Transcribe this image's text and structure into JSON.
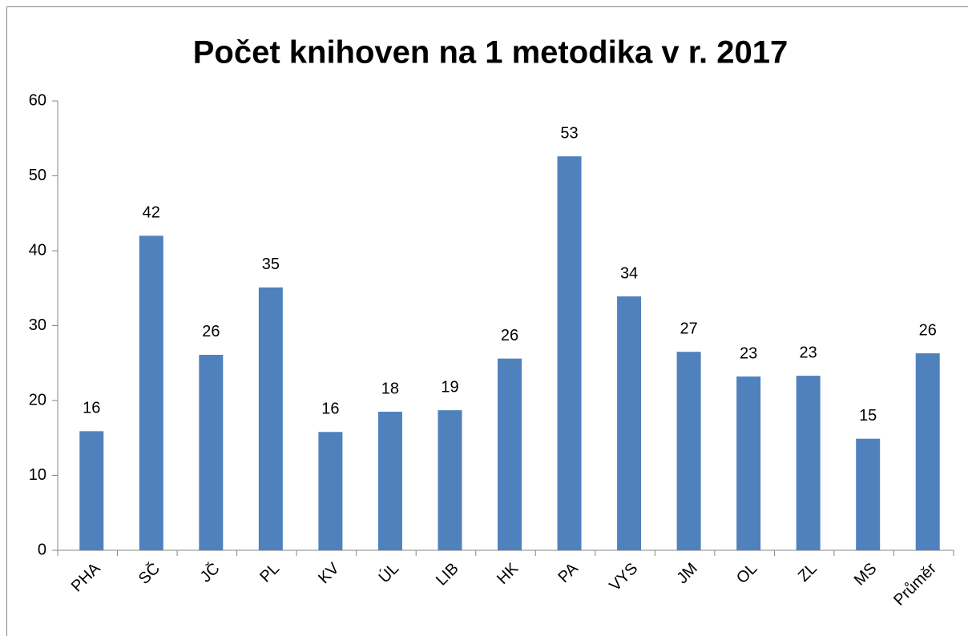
{
  "chart_data": {
    "type": "bar",
    "title": "Počet knihoven na 1 metodika v r. 2017",
    "categories": [
      "PHA",
      "SČ",
      "JČ",
      "PL",
      "KV",
      "ÚL",
      "LIB",
      "HK",
      "PA",
      "VYS",
      "JM",
      "OL",
      "ZL",
      "MS",
      "Průměr"
    ],
    "values": [
      15.9,
      42,
      26.1,
      35.1,
      15.8,
      18.5,
      18.7,
      25.6,
      52.6,
      33.9,
      26.5,
      23.2,
      23.3,
      14.9,
      26.3
    ],
    "value_labels": [
      "16",
      "42",
      "26",
      "35",
      "16",
      "18",
      "19",
      "26",
      "53",
      "34",
      "27",
      "23",
      "23",
      "15",
      "26"
    ],
    "color": "#4f81bd",
    "ylim": [
      0,
      60
    ],
    "yticks": [
      0,
      10,
      20,
      30,
      40,
      50,
      60
    ],
    "grid": false
  }
}
